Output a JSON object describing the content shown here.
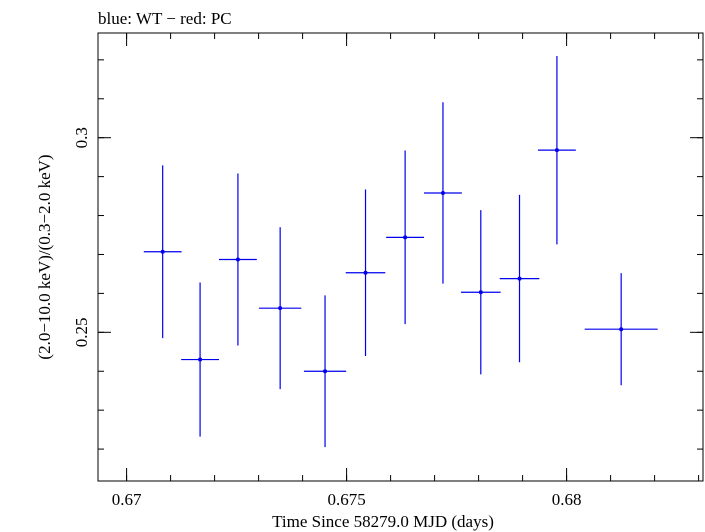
{
  "chart_data": {
    "type": "scatter",
    "title": "blue: WT − red: PC",
    "xlabel": "Time Since 58279.0 MJD (days)",
    "ylabel": "(2.0−10.0 keV)/(0.3−2.0 keV)",
    "xlim": [
      0.66935,
      0.6831
    ],
    "ylim": [
      0.2118,
      0.3269
    ],
    "x_ticks": [
      {
        "value": 0.67,
        "label": "0.67"
      },
      {
        "value": 0.675,
        "label": "0.675"
      },
      {
        "value": 0.68,
        "label": "0.68"
      }
    ],
    "y_ticks": [
      {
        "value": 0.25,
        "label": "0.25"
      },
      {
        "value": 0.3,
        "label": "0.3"
      }
    ],
    "x_minor_step": 0.001,
    "y_minor_step": 0.01,
    "grid": false,
    "series": [
      {
        "name": "WT",
        "color": "#0000ee",
        "points": [
          {
            "x": 0.67082,
            "xerr": 0.00043,
            "y": 0.2707,
            "yerr_low": 0.0222,
            "yerr_high": 0.0222
          },
          {
            "x": 0.67167,
            "xerr": 0.00043,
            "y": 0.243,
            "yerr_low": 0.0198,
            "yerr_high": 0.0198
          },
          {
            "x": 0.67253,
            "xerr": 0.00043,
            "y": 0.2687,
            "yerr_low": 0.0221,
            "yerr_high": 0.0221
          },
          {
            "x": 0.67349,
            "xerr": 0.00048,
            "y": 0.2562,
            "yerr_low": 0.0208,
            "yerr_high": 0.0208
          },
          {
            "x": 0.67451,
            "xerr": 0.00048,
            "y": 0.24,
            "yerr_low": 0.0195,
            "yerr_high": 0.0195
          },
          {
            "x": 0.67543,
            "xerr": 0.00045,
            "y": 0.2653,
            "yerr_low": 0.0214,
            "yerr_high": 0.0214
          },
          {
            "x": 0.67633,
            "xerr": 0.00043,
            "y": 0.2744,
            "yerr_low": 0.0223,
            "yerr_high": 0.0223
          },
          {
            "x": 0.67719,
            "xerr": 0.00043,
            "y": 0.2858,
            "yerr_low": 0.0233,
            "yerr_high": 0.0233
          },
          {
            "x": 0.67805,
            "xerr": 0.00045,
            "y": 0.2603,
            "yerr_low": 0.0211,
            "yerr_high": 0.0211
          },
          {
            "x": 0.67893,
            "xerr": 0.00045,
            "y": 0.2638,
            "yerr_low": 0.0215,
            "yerr_high": 0.0215
          },
          {
            "x": 0.67978,
            "xerr": 0.00043,
            "y": 0.2968,
            "yerr_low": 0.0242,
            "yerr_high": 0.0242
          },
          {
            "x": 0.68124,
            "xerr": 0.00083,
            "y": 0.2508,
            "yerr_low": 0.0144,
            "yerr_high": 0.0144
          }
        ]
      }
    ]
  }
}
